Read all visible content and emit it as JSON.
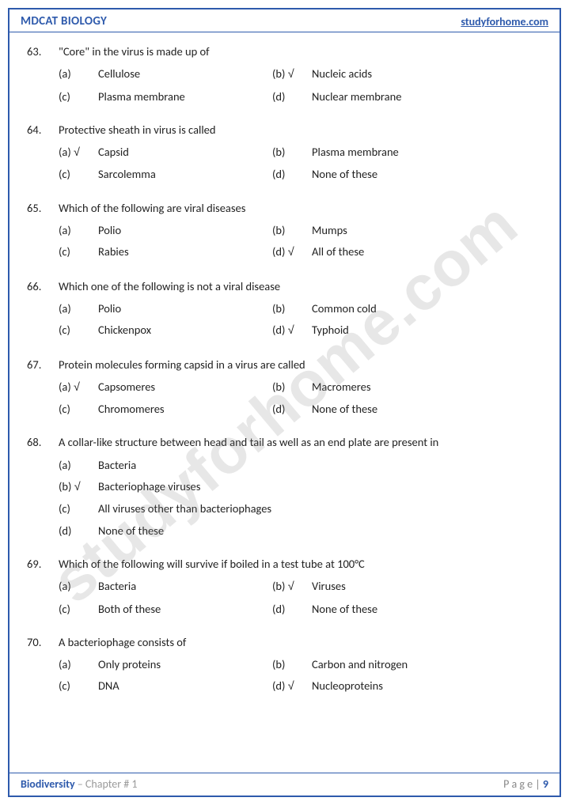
{
  "header": {
    "left": "MDCAT BIOLOGY",
    "right": "studyforhome.com"
  },
  "watermark": "studyforhome.com",
  "footer": {
    "topic": "Biodiversity",
    "chapter": " – Chapter # 1",
    "page_label": "P a g e  | ",
    "page_num": "9"
  },
  "questions": [
    {
      "num": "63.",
      "text": "\"Core\" in the virus is made up of",
      "layout": "two-col",
      "options": [
        {
          "label": "(a)",
          "text": "Cellulose",
          "correct": false
        },
        {
          "label": "(b)",
          "text": "Nucleic acids",
          "correct": true
        },
        {
          "label": "(c)",
          "text": "Plasma membrane",
          "correct": false
        },
        {
          "label": "(d)",
          "text": "Nuclear membrane",
          "correct": false
        }
      ]
    },
    {
      "num": "64.",
      "text": "Protective sheath in virus is called",
      "layout": "two-col",
      "options": [
        {
          "label": "(a)",
          "text": "Capsid",
          "correct": true
        },
        {
          "label": "(b)",
          "text": "Plasma membrane",
          "correct": false
        },
        {
          "label": "(c)",
          "text": "Sarcolemma",
          "correct": false
        },
        {
          "label": "(d)",
          "text": "None of these",
          "correct": false
        }
      ]
    },
    {
      "num": "65.",
      "text": "Which of the following are viral diseases",
      "layout": "two-col",
      "options": [
        {
          "label": "(a)",
          "text": "Polio",
          "correct": false
        },
        {
          "label": "(b)",
          "text": "Mumps",
          "correct": false
        },
        {
          "label": "(c)",
          "text": "Rabies",
          "correct": false
        },
        {
          "label": "(d)",
          "text": "All of these",
          "correct": true
        }
      ]
    },
    {
      "num": "66.",
      "text": "Which one of the following is not a viral disease",
      "layout": "two-col",
      "options": [
        {
          "label": "(a)",
          "text": "Polio",
          "correct": false
        },
        {
          "label": "(b)",
          "text": "Common cold",
          "correct": false
        },
        {
          "label": "(c)",
          "text": "Chickenpox",
          "correct": false
        },
        {
          "label": "(d)",
          "text": "Typhoid",
          "correct": true
        }
      ]
    },
    {
      "num": "67.",
      "text": "Protein molecules forming capsid in a virus are called",
      "layout": "two-col",
      "options": [
        {
          "label": "(a)",
          "text": "Capsomeres",
          "correct": true
        },
        {
          "label": "(b)",
          "text": "Macromeres",
          "correct": false
        },
        {
          "label": "(c)",
          "text": "Chromomeres",
          "correct": false
        },
        {
          "label": "(d)",
          "text": "None of these",
          "correct": false
        }
      ]
    },
    {
      "num": "68.",
      "text": "A collar-like structure between head and tail as well as an end plate are present in",
      "layout": "one-col",
      "options": [
        {
          "label": "(a)",
          "text": "Bacteria",
          "correct": false
        },
        {
          "label": "(b)",
          "text": "Bacteriophage viruses",
          "correct": true
        },
        {
          "label": "(c)",
          "text": "All viruses other than bacteriophages",
          "correct": false
        },
        {
          "label": "(d)",
          "text": "None of these",
          "correct": false
        }
      ]
    },
    {
      "num": "69.",
      "text": "Which of the following will survive if boiled in a test tube at 100°C",
      "layout": "two-col",
      "options": [
        {
          "label": "(a)",
          "text": "Bacteria",
          "correct": false
        },
        {
          "label": "(b)",
          "text": "Viruses",
          "correct": true
        },
        {
          "label": "(c)",
          "text": "Both of these",
          "correct": false
        },
        {
          "label": "(d)",
          "text": "None of these",
          "correct": false
        }
      ]
    },
    {
      "num": "70.",
      "text": "A bacteriophage consists of",
      "layout": "two-col",
      "options": [
        {
          "label": "(a)",
          "text": "Only proteins",
          "correct": false
        },
        {
          "label": "(b)",
          "text": "Carbon and nitrogen",
          "correct": false
        },
        {
          "label": "(c)",
          "text": "DNA",
          "correct": false
        },
        {
          "label": "(d)",
          "text": "Nucleoproteins",
          "correct": true
        }
      ]
    }
  ]
}
